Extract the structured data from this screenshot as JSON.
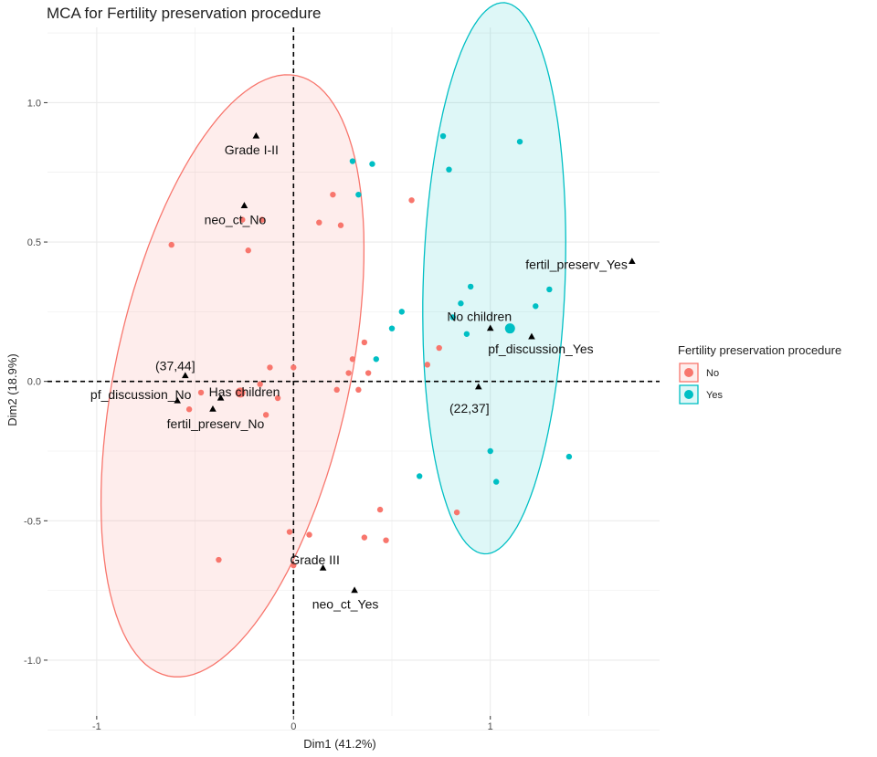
{
  "chart_data": {
    "type": "scatter",
    "title": "MCA for Fertility preservation procedure",
    "xlabel": "Dim1 (41.2%)",
    "ylabel": "Dim2 (18.9%)",
    "xlim": [
      -1.25,
      1.86
    ],
    "ylim": [
      -1.2,
      1.27
    ],
    "xticks": [
      -1,
      0,
      1
    ],
    "xtick_labels": [
      "-1",
      "0",
      "1"
    ],
    "yticks": [
      1.0,
      0.5,
      0.0,
      -0.5,
      -1.0
    ],
    "ytick_labels": [
      "1.0",
      "0.5",
      "0.0",
      "-0.5",
      "-1.0"
    ],
    "grid": true,
    "legend": {
      "title": "Fertility preservation procedure",
      "position": "right",
      "entries": [
        {
          "label": "No",
          "color": "#F8766D"
        },
        {
          "label": "Yes",
          "color": "#00BFC4"
        }
      ]
    },
    "series": [
      {
        "name": "No",
        "color": "#F8766D",
        "points": [
          [
            -0.62,
            0.49
          ],
          [
            -0.26,
            0.58
          ],
          [
            -0.16,
            0.58
          ],
          [
            -0.23,
            0.47
          ],
          [
            0.13,
            0.57
          ],
          [
            0.2,
            0.67
          ],
          [
            0.24,
            0.56
          ],
          [
            0.6,
            0.65
          ],
          [
            0.36,
            0.14
          ],
          [
            0.3,
            0.08
          ],
          [
            0.28,
            0.03
          ],
          [
            0.38,
            0.03
          ],
          [
            -0.12,
            0.05
          ],
          [
            0.0,
            0.05
          ],
          [
            -0.17,
            -0.01
          ],
          [
            -0.08,
            -0.06
          ],
          [
            -0.28,
            -0.04
          ],
          [
            -0.47,
            -0.04
          ],
          [
            -0.53,
            -0.1
          ],
          [
            -0.14,
            -0.12
          ],
          [
            0.22,
            -0.03
          ],
          [
            0.33,
            -0.03
          ],
          [
            0.68,
            0.06
          ],
          [
            0.74,
            0.12
          ],
          [
            -0.38,
            -0.64
          ],
          [
            -0.02,
            -0.54
          ],
          [
            0.08,
            -0.55
          ],
          [
            0.0,
            -0.66
          ],
          [
            0.36,
            -0.56
          ],
          [
            0.44,
            -0.46
          ],
          [
            0.47,
            -0.57
          ],
          [
            0.83,
            -0.47
          ]
        ]
      },
      {
        "name": "Yes",
        "color": "#00BFC4",
        "points": [
          [
            0.3,
            0.79
          ],
          [
            0.4,
            0.78
          ],
          [
            0.33,
            0.67
          ],
          [
            0.76,
            0.88
          ],
          [
            0.79,
            0.76
          ],
          [
            1.15,
            0.86
          ],
          [
            0.9,
            0.34
          ],
          [
            0.85,
            0.28
          ],
          [
            0.81,
            0.23
          ],
          [
            0.88,
            0.17
          ],
          [
            1.23,
            0.27
          ],
          [
            1.3,
            0.33
          ],
          [
            0.55,
            0.25
          ],
          [
            0.5,
            0.19
          ],
          [
            0.42,
            0.08
          ],
          [
            1.0,
            -0.25
          ],
          [
            1.03,
            -0.36
          ],
          [
            0.64,
            -0.34
          ],
          [
            1.4,
            -0.27
          ]
        ]
      }
    ],
    "centroids": [
      {
        "name": "No",
        "x": -0.27,
        "y": -0.04,
        "color": "#F8766D"
      },
      {
        "name": "Yes",
        "x": 1.1,
        "y": 0.19,
        "color": "#00BFC4"
      }
    ],
    "ellipses": [
      {
        "group": "No",
        "cx": -0.31,
        "cy": 0.02,
        "semi_major": 1.13,
        "semi_minor": 0.58,
        "angle_deg": 70,
        "color": "#F8766D"
      },
      {
        "group": "Yes",
        "cx": 1.02,
        "cy": 0.37,
        "semi_major": 0.99,
        "semi_minor": 0.36,
        "angle_deg": 87,
        "color": "#00BFC4"
      }
    ],
    "supplementary_points": [
      {
        "label": "Grade I-II",
        "x": -0.19,
        "y": 0.88,
        "anchor": "middle",
        "dx": -5,
        "dy": 20
      },
      {
        "label": "neo_ct_No",
        "x": -0.25,
        "y": 0.63,
        "anchor": "middle",
        "dx": -10,
        "dy": 20
      },
      {
        "label": "fertil_preserv_Yes",
        "x": 1.72,
        "y": 0.43,
        "anchor": "end",
        "dx": -5,
        "dy": 8
      },
      {
        "label": "No children",
        "x": 1.0,
        "y": 0.19,
        "anchor": "middle",
        "dx": -12,
        "dy": -8
      },
      {
        "label": "pf_discussion_Yes",
        "x": 1.21,
        "y": 0.16,
        "anchor": "middle",
        "dx": 10,
        "dy": 18
      },
      {
        "label": "(22,37]",
        "x": 0.94,
        "y": -0.02,
        "anchor": "middle",
        "dx": -10,
        "dy": 28
      },
      {
        "label": "(37,44]",
        "x": -0.55,
        "y": 0.02,
        "anchor": "middle",
        "dx": -11,
        "dy": -6
      },
      {
        "label": "pf_discussion_No",
        "x": -0.59,
        "y": -0.07,
        "anchor": "middle",
        "dx": -40,
        "dy": -2
      },
      {
        "label": "Has children",
        "x": -0.37,
        "y": -0.06,
        "anchor": "middle",
        "dx": 26,
        "dy": -2
      },
      {
        "label": "fertil_preserv_No",
        "x": -0.41,
        "y": -0.1,
        "anchor": "middle",
        "dx": 3,
        "dy": 21
      },
      {
        "label": "Grade III",
        "x": 0.15,
        "y": -0.67,
        "anchor": "middle",
        "dx": -9,
        "dy": -4
      },
      {
        "label": "neo_ct_Yes",
        "x": 0.31,
        "y": -0.75,
        "anchor": "middle",
        "dx": -10,
        "dy": 20
      }
    ]
  }
}
